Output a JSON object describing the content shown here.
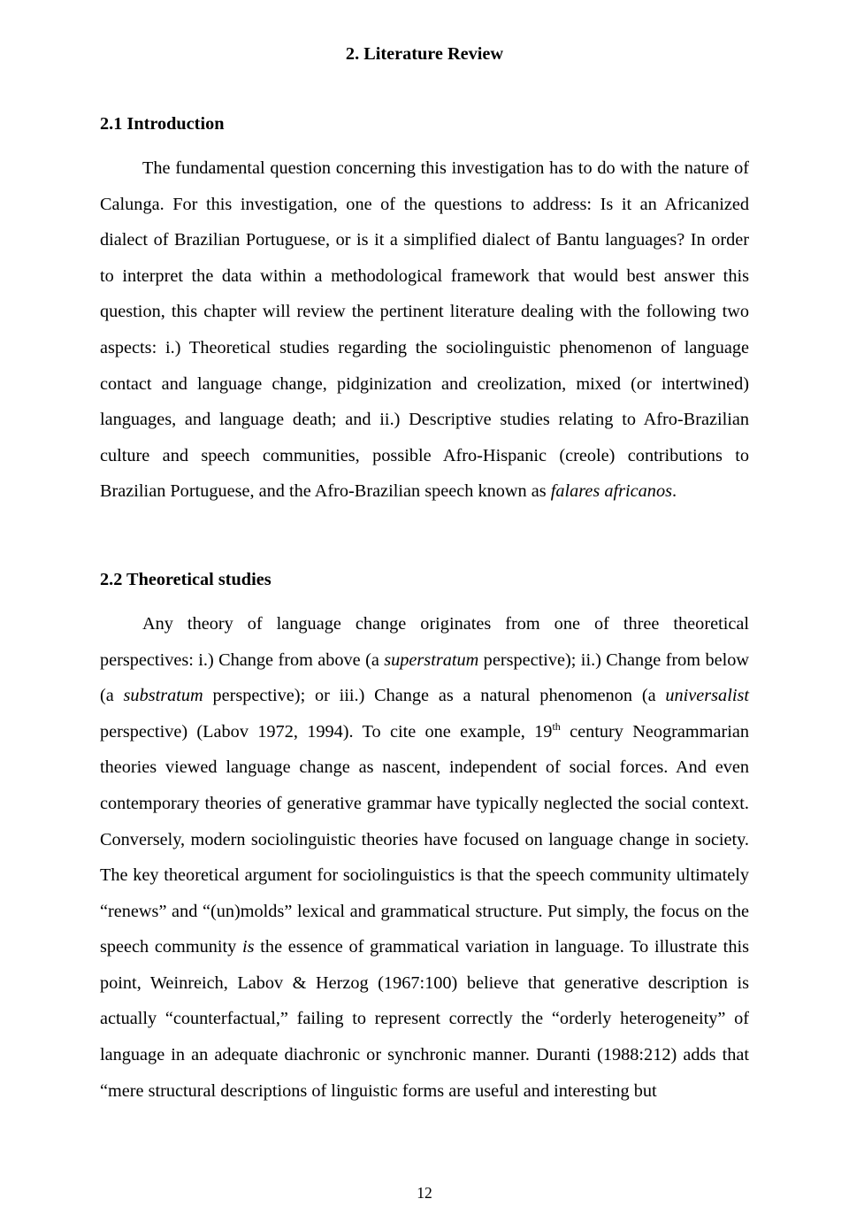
{
  "page": {
    "number": "12"
  },
  "chapter": {
    "title": "2. Literature Review"
  },
  "sections": {
    "intro": {
      "heading": "2.1 Introduction",
      "p1_a": "The fundamental question concerning this investigation has to do with the nature of Calunga. For this investigation, one of the questions to address: Is it an Africanized dialect of Brazilian Portuguese, or is it a simplified dialect of Bantu languages? In order to interpret the data within a methodological framework that would best answer this question, this chapter will review the pertinent literature dealing with the following two aspects: i.) Theoretical studies regarding the sociolinguistic phenomenon of language contact and language change, pidginization and creolization, mixed (or intertwined) languages, and language death; and ii.) Descriptive studies relating to Afro-Brazilian culture and speech communities, possible Afro-Hispanic (creole) contributions to Brazilian Portuguese, and the Afro-Brazilian speech known as ",
      "p1_b_italic": "falares africanos",
      "p1_c": "."
    },
    "theoretical": {
      "heading": "2.2 Theoretical studies",
      "p1_a": "Any theory of language change originates from one of three theoretical perspectives: i.) Change from above (a ",
      "p1_b_italic": "superstratum",
      "p1_c": " perspective); ii.) Change from below (a ",
      "p1_d_italic": "substratum",
      "p1_e": " perspective); or iii.) Change as a natural phenomenon (a ",
      "p1_f_italic": "universalist",
      "p1_g": " perspective) (Labov 1972, 1994). To cite one example, 19",
      "p1_h_sup": "th",
      "p1_i": " century Neogrammarian theories viewed language change as nascent, independent of social forces. And even contemporary theories of generative grammar have typically neglected the social context. Conversely, modern sociolinguistic theories have focused on language change in society. The key theoretical argument for sociolinguistics is that the speech community ultimately “renews” and “(un)molds” lexical and grammatical structure. Put simply, the focus on the speech community ",
      "p1_j_italic": "is",
      "p1_k": " the essence of grammatical variation in language. To illustrate this point, Weinreich, Labov & Herzog (1967:100) believe that generative description is actually “counterfactual,” failing to represent correctly the “orderly heterogeneity” of language in an adequate diachronic or synchronic manner. Duranti (1988:212) adds that “mere structural descriptions of linguistic forms are useful and interesting but"
    }
  }
}
